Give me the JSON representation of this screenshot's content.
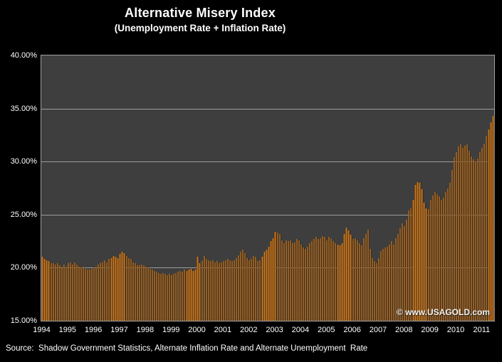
{
  "header": {
    "title": "Alternative Misery Index",
    "subtitle": "(Unemployment Rate + Inflation Rate)"
  },
  "watermark": "© www.USAGOLD.com",
  "source_note": "Source:  Shadow Government Statistics, Alternate Inflation Rate and Alternate Unemployment  Rate",
  "chart_data": {
    "type": "bar",
    "title": "Alternative Misery Index",
    "subtitle": "(Unemployment Rate + Inflation Rate)",
    "frequency": "monthly",
    "x_start": "1994-01",
    "x_end": "2011-06",
    "ylim": [
      15,
      40
    ],
    "y_ticks": [
      "40.00%",
      "35.00%",
      "30.00%",
      "25.00%",
      "20.00%",
      "15.00%"
    ],
    "gridline_values": [
      35,
      30,
      25,
      20
    ],
    "grid": "horizontal-only",
    "legend": "none",
    "x_tick_years": [
      "1994",
      "1995",
      "1996",
      "1997",
      "1998",
      "1999",
      "2000",
      "2001",
      "2002",
      "2003",
      "2004",
      "2005",
      "2006",
      "2007",
      "2008",
      "2009",
      "2010",
      "2011"
    ],
    "colors": {
      "page_bg": "#000000",
      "plot_bg": "#3e3e3e",
      "gridline": "#9d9d9d",
      "bar_fill": "#d8872f",
      "bar_edge": "#4f2e10",
      "text": "#ffffff"
    },
    "series": [
      {
        "name": "Alternative Misery Index (%)",
        "values": [
          21.0,
          20.8,
          20.7,
          20.6,
          20.4,
          20.4,
          20.3,
          20.4,
          20.2,
          20.1,
          20.3,
          20.1,
          20.4,
          20.5,
          20.3,
          20.5,
          20.3,
          20.1,
          20.0,
          20.1,
          19.9,
          19.8,
          19.8,
          19.9,
          20.0,
          20.1,
          20.3,
          20.4,
          20.5,
          20.7,
          20.5,
          20.8,
          20.9,
          21.1,
          21.0,
          20.9,
          21.3,
          21.5,
          21.4,
          21.1,
          20.9,
          20.8,
          20.5,
          20.4,
          20.2,
          20.2,
          20.3,
          20.2,
          20.1,
          20.0,
          19.9,
          19.8,
          19.7,
          19.6,
          19.5,
          19.4,
          19.5,
          19.4,
          19.3,
          19.4,
          19.3,
          19.4,
          19.5,
          19.6,
          19.7,
          19.6,
          19.8,
          19.7,
          19.8,
          19.9,
          19.7,
          19.8,
          21.0,
          20.4,
          20.6,
          21.1,
          20.8,
          20.7,
          20.6,
          20.7,
          20.5,
          20.6,
          20.4,
          20.5,
          20.6,
          20.7,
          20.8,
          20.7,
          20.6,
          20.7,
          20.9,
          21.2,
          21.5,
          21.7,
          21.4,
          20.9,
          20.7,
          20.8,
          21.1,
          21.0,
          20.6,
          20.7,
          21.0,
          21.5,
          21.7,
          22.0,
          22.5,
          22.8,
          23.4,
          23.3,
          23.2,
          22.6,
          22.3,
          22.6,
          22.5,
          22.6,
          22.3,
          22.4,
          22.7,
          22.6,
          22.2,
          21.9,
          21.8,
          22.0,
          22.3,
          22.5,
          22.7,
          22.9,
          22.7,
          22.8,
          23.0,
          22.9,
          22.6,
          22.9,
          22.8,
          22.5,
          22.3,
          22.2,
          22.1,
          22.3,
          23.2,
          23.8,
          23.5,
          23.1,
          22.7,
          22.8,
          22.6,
          22.3,
          22.1,
          22.8,
          23.2,
          23.6,
          21.8,
          20.9,
          20.6,
          20.4,
          20.9,
          21.6,
          21.8,
          21.9,
          22.0,
          22.2,
          22.5,
          22.2,
          22.8,
          23.2,
          23.7,
          24.2,
          23.9,
          24.5,
          25.4,
          25.6,
          26.4,
          27.8,
          28.1,
          28.0,
          27.4,
          26.1,
          25.6,
          25.5,
          26.4,
          26.8,
          27.1,
          26.9,
          26.7,
          26.4,
          26.6,
          27.1,
          27.5,
          28.0,
          29.2,
          30.4,
          30.9,
          31.4,
          31.6,
          31.3,
          31.5,
          31.6,
          31.0,
          30.5,
          30.2,
          30.0,
          30.3,
          30.9,
          31.3,
          31.7,
          32.4,
          33.0,
          33.7,
          34.3
        ]
      }
    ]
  }
}
